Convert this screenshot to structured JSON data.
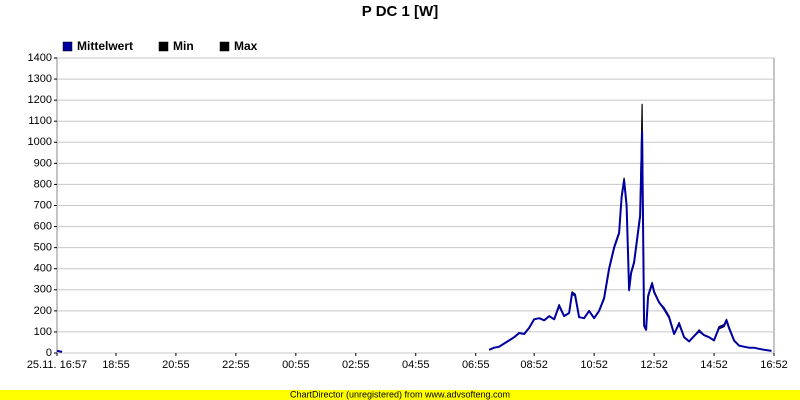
{
  "chart_data": {
    "type": "line",
    "title": "P DC 1 [W]",
    "x": [
      "16:57",
      "17:07",
      "07:12",
      "07:22",
      "07:32",
      "07:42",
      "07:52",
      "08:02",
      "08:12",
      "08:22",
      "08:32",
      "08:42",
      "08:52",
      "09:02",
      "09:12",
      "09:22",
      "09:32",
      "09:42",
      "09:52",
      "10:02",
      "10:08",
      "10:14",
      "10:22",
      "10:32",
      "10:42",
      "10:52",
      "11:02",
      "11:12",
      "11:22",
      "11:32",
      "11:42",
      "11:47",
      "11:52",
      "11:57",
      "12:02",
      "12:06",
      "12:12",
      "12:24",
      "12:28",
      "12:32",
      "12:36",
      "12:40",
      "12:44",
      "12:48",
      "12:52",
      "13:02",
      "13:12",
      "13:22",
      "13:32",
      "13:42",
      "13:52",
      "14:02",
      "14:12",
      "14:22",
      "14:32",
      "14:42",
      "14:52",
      "15:02",
      "15:12",
      "15:17",
      "15:22",
      "15:32",
      "15:42",
      "15:52",
      "16:02",
      "16:12",
      "16:22",
      "16:32",
      "16:47"
    ],
    "series": [
      {
        "name": "Mittelwert",
        "color": "#0000a0",
        "values": [
          10,
          5,
          null,
          15,
          25,
          30,
          45,
          60,
          75,
          95,
          90,
          120,
          160,
          165,
          155,
          175,
          160,
          225,
          175,
          190,
          285,
          275,
          170,
          165,
          200,
          165,
          200,
          260,
          400,
          500,
          570,
          740,
          820,
          700,
          300,
          380,
          430,
          650,
          1050,
          130,
          110,
          270,
          300,
          330,
          290,
          240,
          210,
          170,
          90,
          140,
          75,
          55,
          80,
          105,
          85,
          75,
          60,
          120,
          130,
          155,
          120,
          60,
          35,
          30,
          25,
          25,
          20,
          15,
          10
        ]
      },
      {
        "name": "Min",
        "color": "#000000",
        "values": [
          10,
          5,
          null,
          15,
          25,
          30,
          45,
          60,
          75,
          95,
          90,
          120,
          160,
          165,
          155,
          175,
          160,
          220,
          175,
          190,
          280,
          270,
          170,
          165,
          200,
          165,
          200,
          255,
          395,
          495,
          565,
          735,
          810,
          690,
          295,
          375,
          425,
          640,
          1000,
          125,
          110,
          265,
          295,
          325,
          285,
          240,
          205,
          165,
          90,
          135,
          75,
          55,
          80,
          100,
          85,
          75,
          60,
          115,
          125,
          150,
          115,
          60,
          35,
          30,
          25,
          25,
          20,
          15,
          10
        ]
      },
      {
        "name": "Max",
        "color": "#000000",
        "values": [
          10,
          5,
          null,
          15,
          25,
          30,
          45,
          60,
          75,
          95,
          90,
          120,
          160,
          165,
          155,
          175,
          160,
          230,
          175,
          190,
          290,
          280,
          170,
          165,
          200,
          165,
          200,
          265,
          405,
          505,
          575,
          745,
          830,
          710,
          305,
          385,
          435,
          660,
          1180,
          135,
          110,
          275,
          305,
          335,
          295,
          240,
          215,
          175,
          90,
          145,
          75,
          55,
          80,
          110,
          85,
          75,
          60,
          125,
          135,
          160,
          125,
          60,
          35,
          30,
          25,
          25,
          20,
          15,
          10
        ]
      }
    ],
    "xlim": [
      "16:57",
      "16:52"
    ],
    "xticks": [
      {
        "value": "16:57",
        "label": "25.11. 16:57"
      },
      "18:55",
      "20:55",
      "22:55",
      "00:55",
      "02:55",
      "04:55",
      "06:55",
      "08:52",
      "10:52",
      "12:52",
      "14:52",
      "16:52"
    ],
    "ylim": [
      0,
      1400
    ],
    "yticks": [
      0,
      100,
      200,
      300,
      400,
      500,
      600,
      700,
      800,
      900,
      1000,
      1100,
      1200,
      1300,
      1400
    ],
    "grid": true,
    "legend": "top-left",
    "footer": "ChartDirector (unregistered) from www.advsofteng.com"
  }
}
